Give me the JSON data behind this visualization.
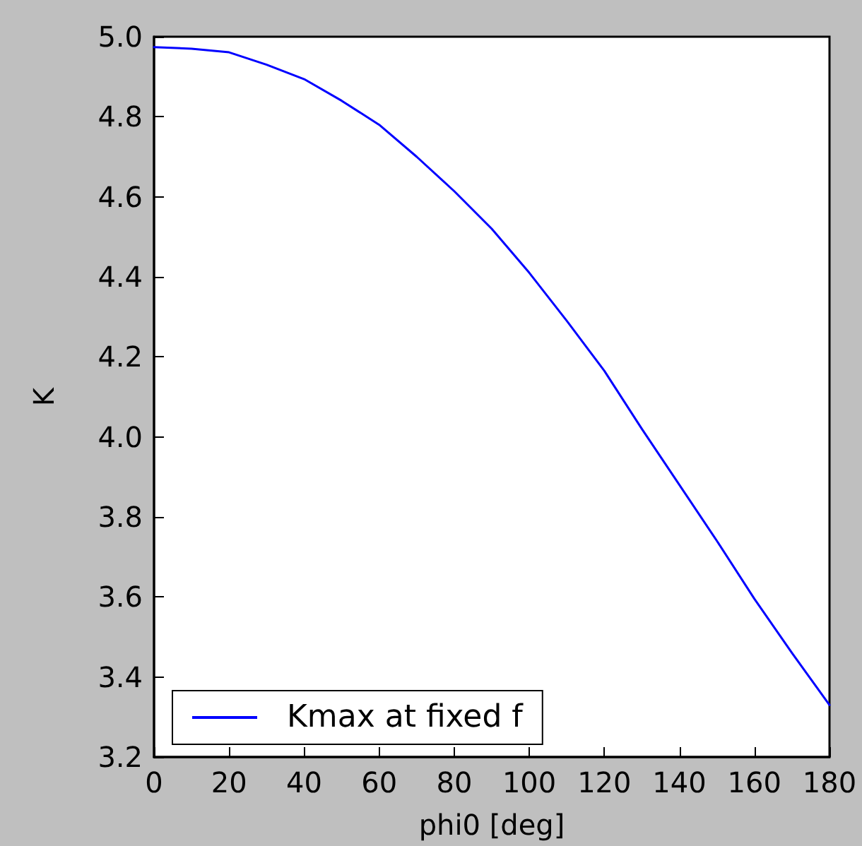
{
  "chart_data": {
    "type": "line",
    "xlabel": "phi0 [deg]",
    "ylabel": "K",
    "x": [
      0,
      10,
      20,
      30,
      40,
      50,
      60,
      70,
      80,
      90,
      100,
      110,
      120,
      130,
      140,
      150,
      160,
      170,
      180
    ],
    "series": [
      {
        "name": "Kmax at fixed f",
        "color": "#0000ff",
        "values": [
          4.974,
          4.97,
          4.961,
          4.93,
          4.894,
          4.84,
          4.78,
          4.7,
          4.614,
          4.52,
          4.41,
          4.29,
          4.165,
          4.02,
          3.88,
          3.74,
          3.595,
          3.46,
          3.33
        ]
      }
    ],
    "xlim": [
      0,
      180
    ],
    "xticks": [
      0,
      20,
      40,
      60,
      80,
      100,
      120,
      140,
      160,
      180
    ],
    "ylim": [
      3.2,
      5.0
    ],
    "yticks": [
      3.2,
      3.4,
      3.6,
      3.8,
      {
        "value": 4,
        "label": "4.0"
      },
      4.2,
      4.4,
      4.6,
      4.8,
      {
        "value": 5,
        "label": "5.0"
      }
    ],
    "legend": "bottom left",
    "marker": "none",
    "line_style": "solid",
    "grid": false
  }
}
